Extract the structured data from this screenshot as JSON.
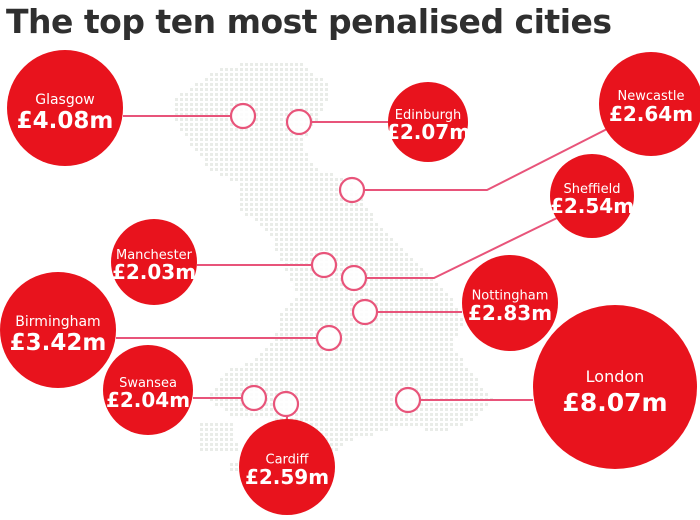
{
  "title": "The top ten most penalised cities",
  "colors": {
    "bubble": "#e8131d",
    "bubble_text": "#ffffff",
    "connector": "#e8547a",
    "map_dots": "#e9ece8"
  },
  "chart_data": {
    "type": "bubble-map",
    "title": "The top ten most penalised cities",
    "unit": "£ millions",
    "cities": [
      {
        "name": "Glasgow",
        "label": "£4.08m",
        "value": 4.08
      },
      {
        "name": "Edinburgh",
        "label": "£2.07m",
        "value": 2.07
      },
      {
        "name": "Newcastle",
        "label": "£2.64m",
        "value": 2.64
      },
      {
        "name": "Sheffield",
        "label": "£2.54m",
        "value": 2.54
      },
      {
        "name": "Manchester",
        "label": "£2.03m",
        "value": 2.03
      },
      {
        "name": "Nottingham",
        "label": "£2.83m",
        "value": 2.83
      },
      {
        "name": "Birmingham",
        "label": "£3.42m",
        "value": 3.42
      },
      {
        "name": "London",
        "label": "£8.07m",
        "value": 8.07
      },
      {
        "name": "Swansea",
        "label": "£2.04m",
        "value": 2.04
      },
      {
        "name": "Cardiff",
        "label": "£2.59m",
        "value": 2.59
      }
    ]
  }
}
